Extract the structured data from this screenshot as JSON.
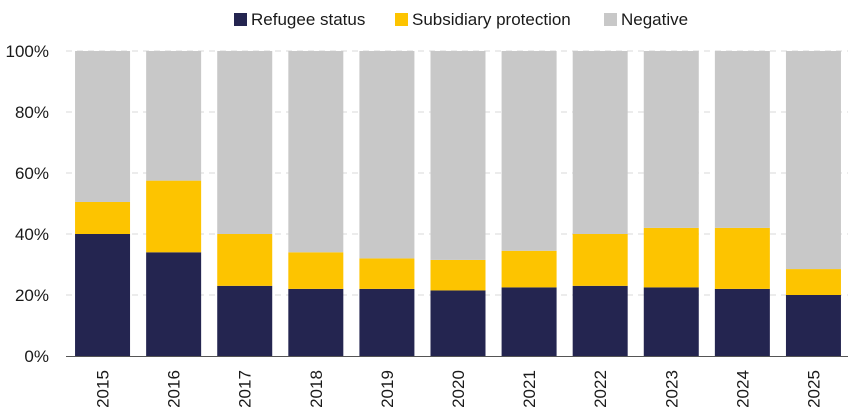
{
  "colors": {
    "refugee": "#242550",
    "subsidiary": "#fdc400",
    "negative": "#c8c8c8",
    "grid": "#d9d9d9",
    "axis": "#555555"
  },
  "chart_data": {
    "type": "bar",
    "stacked": true,
    "categories": [
      "2015",
      "2016",
      "2017",
      "2018",
      "2019",
      "2020",
      "2021",
      "2022",
      "2023",
      "2024",
      "2025"
    ],
    "series": [
      {
        "name": "Refugee status",
        "values": [
          40,
          34,
          23,
          22,
          22,
          21.5,
          22.5,
          23,
          22.5,
          22,
          20
        ]
      },
      {
        "name": "Subsidiary protection",
        "values": [
          10.5,
          23.5,
          17,
          12,
          10,
          10,
          12,
          17,
          19.5,
          20,
          8.5
        ]
      },
      {
        "name": "Negative",
        "values": [
          49.5,
          42.5,
          60,
          66,
          68,
          68.5,
          65.5,
          60,
          58,
          58,
          71.5
        ]
      }
    ],
    "ylim": [
      0,
      100
    ],
    "yticks": [
      "0%",
      "20%",
      "40%",
      "60%",
      "80%",
      "100%"
    ],
    "grid": true,
    "legend_position": "top"
  }
}
